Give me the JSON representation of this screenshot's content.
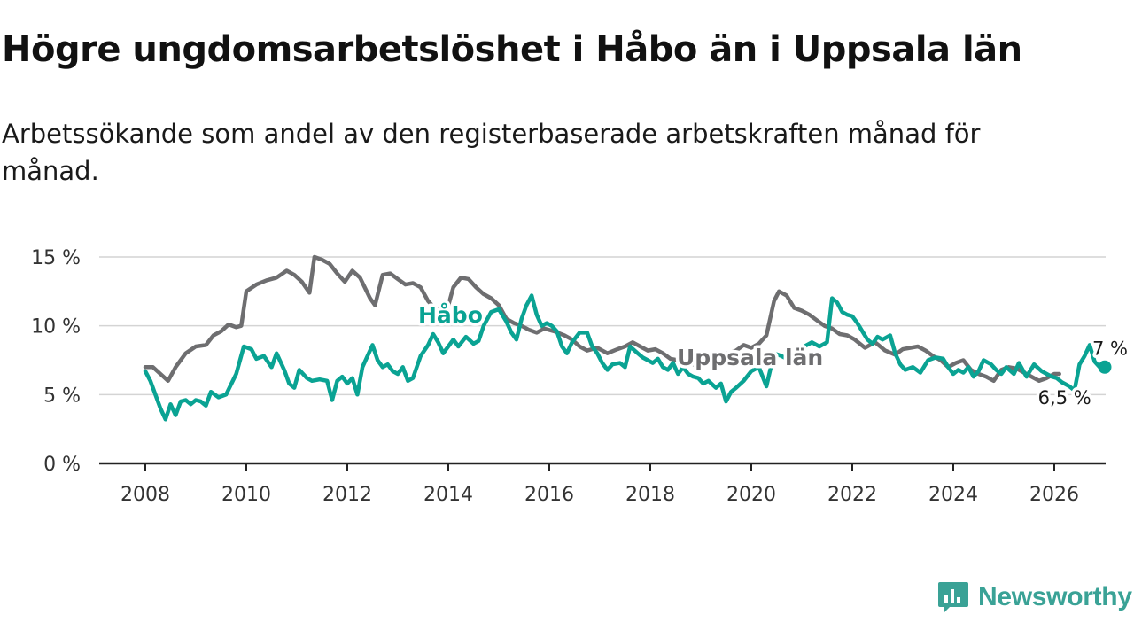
{
  "title": "Högre ungdomsarbetslöshet i Håbo än i Uppsala län",
  "subtitle": "Arbetssökande som andel av den registerbaserade arbetskraften månad för månad.",
  "brand": "Newsworthy",
  "colors": {
    "habo": "#0aa393",
    "uppsala": "#6e6e70",
    "grid": "#d4d4d4",
    "axis": "#222222",
    "brand": "#3aa296"
  },
  "chart_data": {
    "type": "line",
    "title": "",
    "xlabel": "",
    "ylabel": "",
    "xlim": [
      2007.3,
      2027.0
    ],
    "ylim": [
      0,
      15
    ],
    "y_ticks": [
      0,
      5,
      10,
      15
    ],
    "y_tick_labels": [
      "0 %",
      "5 %",
      "10 %",
      "15 %"
    ],
    "x_ticks": [
      2008,
      2010,
      2012,
      2014,
      2016,
      2018,
      2020,
      2022,
      2024,
      2026
    ],
    "x_tick_labels": [
      "2008",
      "2010",
      "2012",
      "2014",
      "2016",
      "2018",
      "2020",
      "2022",
      "2024",
      "2026"
    ],
    "grid": true,
    "series": [
      {
        "name": "Uppsala län",
        "label": "Uppsala län",
        "end_label": "6,5 %",
        "points": [
          [
            2008.0,
            7.0
          ],
          [
            2008.15,
            7.0
          ],
          [
            2008.3,
            6.5
          ],
          [
            2008.45,
            6.0
          ],
          [
            2008.6,
            7.0
          ],
          [
            2008.8,
            8.0
          ],
          [
            2009.0,
            8.5
          ],
          [
            2009.2,
            8.6
          ],
          [
            2009.35,
            9.3
          ],
          [
            2009.5,
            9.6
          ],
          [
            2009.65,
            10.1
          ],
          [
            2009.8,
            9.9
          ],
          [
            2009.9,
            10.0
          ],
          [
            2010.0,
            12.5
          ],
          [
            2010.2,
            13.0
          ],
          [
            2010.4,
            13.3
          ],
          [
            2010.6,
            13.5
          ],
          [
            2010.8,
            14.0
          ],
          [
            2010.95,
            13.7
          ],
          [
            2011.1,
            13.2
          ],
          [
            2011.25,
            12.4
          ],
          [
            2011.35,
            15.0
          ],
          [
            2011.5,
            14.8
          ],
          [
            2011.65,
            14.5
          ],
          [
            2011.8,
            13.8
          ],
          [
            2011.95,
            13.2
          ],
          [
            2012.1,
            14.0
          ],
          [
            2012.25,
            13.5
          ],
          [
            2012.45,
            12.0
          ],
          [
            2012.55,
            11.5
          ],
          [
            2012.7,
            13.7
          ],
          [
            2012.85,
            13.8
          ],
          [
            2013.0,
            13.4
          ],
          [
            2013.15,
            13.0
          ],
          [
            2013.3,
            13.1
          ],
          [
            2013.45,
            12.8
          ],
          [
            2013.6,
            11.8
          ],
          [
            2013.75,
            11.2
          ],
          [
            2013.85,
            11.3
          ],
          [
            2013.95,
            10.8
          ],
          [
            2014.1,
            12.8
          ],
          [
            2014.25,
            13.5
          ],
          [
            2014.4,
            13.4
          ],
          [
            2014.55,
            12.8
          ],
          [
            2014.7,
            12.3
          ],
          [
            2014.85,
            12.0
          ],
          [
            2015.0,
            11.5
          ],
          [
            2015.15,
            10.5
          ],
          [
            2015.3,
            10.2
          ],
          [
            2015.45,
            10.0
          ],
          [
            2015.6,
            9.7
          ],
          [
            2015.75,
            9.5
          ],
          [
            2015.9,
            9.8
          ],
          [
            2016.1,
            9.6
          ],
          [
            2016.3,
            9.3
          ],
          [
            2016.45,
            9.0
          ],
          [
            2016.6,
            8.5
          ],
          [
            2016.75,
            8.2
          ],
          [
            2016.95,
            8.4
          ],
          [
            2017.15,
            8.0
          ],
          [
            2017.35,
            8.3
          ],
          [
            2017.5,
            8.5
          ],
          [
            2017.65,
            8.8
          ],
          [
            2017.8,
            8.5
          ],
          [
            2017.95,
            8.2
          ],
          [
            2018.1,
            8.3
          ],
          [
            2018.25,
            8.0
          ],
          [
            2018.4,
            7.6
          ],
          [
            2018.55,
            7.5
          ],
          [
            2018.7,
            7.4
          ],
          [
            2018.85,
            7.2
          ],
          [
            2019.0,
            7.5
          ],
          [
            2019.2,
            7.7
          ],
          [
            2019.4,
            7.9
          ],
          [
            2019.55,
            8.0
          ],
          [
            2019.7,
            8.2
          ],
          [
            2019.85,
            8.6
          ],
          [
            2020.0,
            8.4
          ],
          [
            2020.15,
            8.7
          ],
          [
            2020.3,
            9.3
          ],
          [
            2020.45,
            11.8
          ],
          [
            2020.55,
            12.5
          ],
          [
            2020.7,
            12.2
          ],
          [
            2020.85,
            11.3
          ],
          [
            2021.0,
            11.1
          ],
          [
            2021.15,
            10.8
          ],
          [
            2021.3,
            10.4
          ],
          [
            2021.45,
            10.0
          ],
          [
            2021.6,
            9.8
          ],
          [
            2021.75,
            9.4
          ],
          [
            2021.9,
            9.3
          ],
          [
            2022.05,
            9.0
          ],
          [
            2022.25,
            8.4
          ],
          [
            2022.45,
            8.8
          ],
          [
            2022.65,
            8.2
          ],
          [
            2022.85,
            7.9
          ],
          [
            2023.0,
            8.3
          ],
          [
            2023.15,
            8.4
          ],
          [
            2023.3,
            8.5
          ],
          [
            2023.45,
            8.2
          ],
          [
            2023.6,
            7.8
          ],
          [
            2023.75,
            7.5
          ],
          [
            2023.9,
            7.0
          ],
          [
            2024.05,
            7.3
          ],
          [
            2024.2,
            7.5
          ],
          [
            2024.35,
            6.8
          ],
          [
            2024.5,
            6.5
          ],
          [
            2024.65,
            6.3
          ],
          [
            2024.8,
            6.0
          ],
          [
            2024.95,
            6.8
          ],
          [
            2025.1,
            7.0
          ],
          [
            2025.25,
            6.9
          ],
          [
            2025.4,
            6.6
          ],
          [
            2025.55,
            6.3
          ],
          [
            2025.7,
            6.0
          ],
          [
            2025.85,
            6.2
          ],
          [
            2026.0,
            6.5
          ],
          [
            2026.1,
            6.5
          ]
        ]
      },
      {
        "name": "Håbo",
        "label": "Håbo",
        "end_label": "7 %",
        "points": [
          [
            2008.0,
            6.7
          ],
          [
            2008.1,
            6.0
          ],
          [
            2008.2,
            5.0
          ],
          [
            2008.3,
            4.0
          ],
          [
            2008.4,
            3.2
          ],
          [
            2008.5,
            4.3
          ],
          [
            2008.6,
            3.5
          ],
          [
            2008.7,
            4.5
          ],
          [
            2008.8,
            4.6
          ],
          [
            2008.9,
            4.3
          ],
          [
            2009.0,
            4.6
          ],
          [
            2009.1,
            4.5
          ],
          [
            2009.2,
            4.2
          ],
          [
            2009.3,
            5.2
          ],
          [
            2009.45,
            4.8
          ],
          [
            2009.6,
            5.0
          ],
          [
            2009.8,
            6.5
          ],
          [
            2009.95,
            8.5
          ],
          [
            2010.1,
            8.3
          ],
          [
            2010.2,
            7.6
          ],
          [
            2010.35,
            7.8
          ],
          [
            2010.5,
            7.0
          ],
          [
            2010.6,
            8.0
          ],
          [
            2010.75,
            6.8
          ],
          [
            2010.85,
            5.8
          ],
          [
            2010.95,
            5.5
          ],
          [
            2011.05,
            6.8
          ],
          [
            2011.2,
            6.2
          ],
          [
            2011.3,
            6.0
          ],
          [
            2011.45,
            6.1
          ],
          [
            2011.6,
            6.0
          ],
          [
            2011.7,
            4.6
          ],
          [
            2011.8,
            6.0
          ],
          [
            2011.9,
            6.3
          ],
          [
            2012.0,
            5.8
          ],
          [
            2012.1,
            6.2
          ],
          [
            2012.2,
            5.0
          ],
          [
            2012.3,
            7.0
          ],
          [
            2012.4,
            7.8
          ],
          [
            2012.5,
            8.6
          ],
          [
            2012.6,
            7.5
          ],
          [
            2012.7,
            7.0
          ],
          [
            2012.8,
            7.2
          ],
          [
            2012.9,
            6.7
          ],
          [
            2013.0,
            6.5
          ],
          [
            2013.1,
            7.0
          ],
          [
            2013.2,
            6.0
          ],
          [
            2013.3,
            6.2
          ],
          [
            2013.45,
            7.8
          ],
          [
            2013.6,
            8.6
          ],
          [
            2013.7,
            9.4
          ],
          [
            2013.8,
            8.8
          ],
          [
            2013.9,
            8.0
          ],
          [
            2014.0,
            8.5
          ],
          [
            2014.1,
            9.0
          ],
          [
            2014.2,
            8.5
          ],
          [
            2014.35,
            9.2
          ],
          [
            2014.5,
            8.7
          ],
          [
            2014.6,
            8.9
          ],
          [
            2014.7,
            10.0
          ],
          [
            2014.85,
            11.0
          ],
          [
            2015.0,
            11.2
          ],
          [
            2015.15,
            10.3
          ],
          [
            2015.25,
            9.5
          ],
          [
            2015.35,
            9.0
          ],
          [
            2015.45,
            10.5
          ],
          [
            2015.55,
            11.5
          ],
          [
            2015.65,
            12.2
          ],
          [
            2015.75,
            10.8
          ],
          [
            2015.85,
            10.0
          ],
          [
            2015.95,
            10.2
          ],
          [
            2016.05,
            10.0
          ],
          [
            2016.15,
            9.6
          ],
          [
            2016.25,
            8.5
          ],
          [
            2016.35,
            8.0
          ],
          [
            2016.45,
            8.8
          ],
          [
            2016.6,
            9.5
          ],
          [
            2016.75,
            9.5
          ],
          [
            2016.85,
            8.5
          ],
          [
            2016.95,
            8.0
          ],
          [
            2017.05,
            7.3
          ],
          [
            2017.15,
            6.8
          ],
          [
            2017.25,
            7.2
          ],
          [
            2017.4,
            7.3
          ],
          [
            2017.5,
            7.0
          ],
          [
            2017.6,
            8.5
          ],
          [
            2017.75,
            8.0
          ],
          [
            2017.85,
            7.7
          ],
          [
            2017.95,
            7.5
          ],
          [
            2018.05,
            7.3
          ],
          [
            2018.15,
            7.6
          ],
          [
            2018.25,
            7.0
          ],
          [
            2018.35,
            6.8
          ],
          [
            2018.45,
            7.3
          ],
          [
            2018.55,
            6.5
          ],
          [
            2018.65,
            7.0
          ],
          [
            2018.75,
            6.5
          ],
          [
            2018.85,
            6.3
          ],
          [
            2018.95,
            6.2
          ],
          [
            2019.05,
            5.8
          ],
          [
            2019.15,
            6.0
          ],
          [
            2019.3,
            5.5
          ],
          [
            2019.4,
            5.8
          ],
          [
            2019.5,
            4.5
          ],
          [
            2019.6,
            5.2
          ],
          [
            2019.7,
            5.5
          ],
          [
            2019.85,
            6.0
          ],
          [
            2020.0,
            6.7
          ],
          [
            2020.15,
            7.0
          ],
          [
            2020.3,
            5.6
          ],
          [
            2020.45,
            8.0
          ],
          [
            2020.6,
            7.8
          ],
          [
            2020.75,
            7.5
          ],
          [
            2020.9,
            8.3
          ],
          [
            2021.05,
            8.5
          ],
          [
            2021.2,
            8.8
          ],
          [
            2021.35,
            8.5
          ],
          [
            2021.5,
            8.8
          ],
          [
            2021.6,
            12.0
          ],
          [
            2021.7,
            11.7
          ],
          [
            2021.8,
            11.0
          ],
          [
            2021.9,
            10.8
          ],
          [
            2022.0,
            10.7
          ],
          [
            2022.1,
            10.2
          ],
          [
            2022.2,
            9.6
          ],
          [
            2022.3,
            9.0
          ],
          [
            2022.4,
            8.7
          ],
          [
            2022.5,
            9.2
          ],
          [
            2022.6,
            9.0
          ],
          [
            2022.75,
            9.3
          ],
          [
            2022.85,
            8.0
          ],
          [
            2022.95,
            7.2
          ],
          [
            2023.05,
            6.8
          ],
          [
            2023.2,
            7.0
          ],
          [
            2023.35,
            6.6
          ],
          [
            2023.5,
            7.5
          ],
          [
            2023.65,
            7.7
          ],
          [
            2023.8,
            7.6
          ],
          [
            2023.9,
            7.0
          ],
          [
            2024.0,
            6.5
          ],
          [
            2024.1,
            6.8
          ],
          [
            2024.2,
            6.6
          ],
          [
            2024.3,
            7.0
          ],
          [
            2024.4,
            6.3
          ],
          [
            2024.5,
            6.7
          ],
          [
            2024.6,
            7.5
          ],
          [
            2024.75,
            7.2
          ],
          [
            2024.85,
            6.8
          ],
          [
            2024.95,
            6.5
          ],
          [
            2025.05,
            7.0
          ],
          [
            2025.2,
            6.5
          ],
          [
            2025.3,
            7.3
          ],
          [
            2025.45,
            6.3
          ],
          [
            2025.6,
            7.2
          ],
          [
            2025.75,
            6.7
          ],
          [
            2025.85,
            6.5
          ],
          [
            2025.95,
            6.3
          ],
          [
            2026.05,
            6.2
          ],
          [
            2026.15,
            5.9
          ],
          [
            2026.3,
            5.6
          ],
          [
            2026.4,
            5.3
          ],
          [
            2026.5,
            7.2
          ],
          [
            2026.6,
            7.8
          ],
          [
            2026.7,
            8.6
          ],
          [
            2026.8,
            7.4
          ],
          [
            2026.9,
            7.0
          ],
          [
            2027.0,
            7.0
          ]
        ]
      }
    ]
  }
}
